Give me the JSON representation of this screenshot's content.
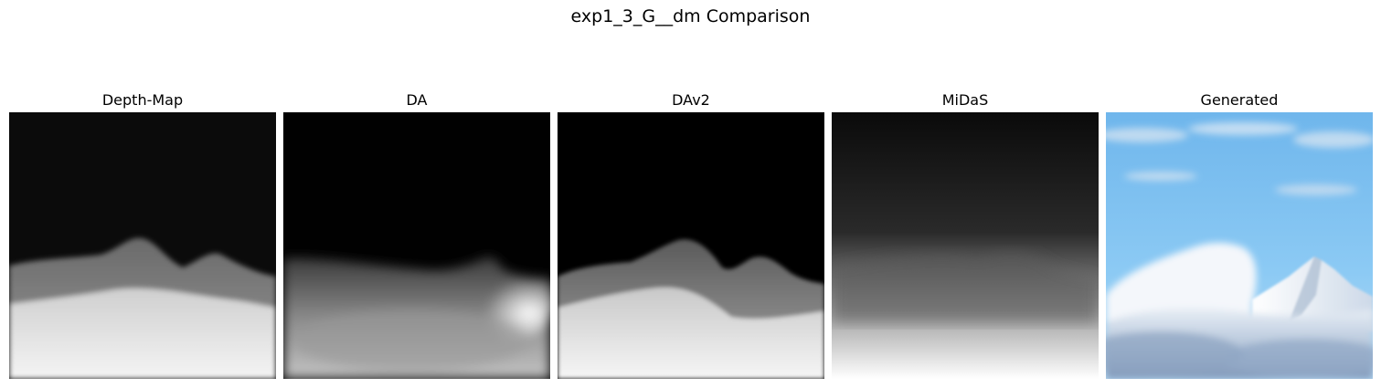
{
  "figure": {
    "title": "exp1_3_G__dm Comparison"
  },
  "panels": [
    {
      "title": "Depth-Map",
      "icon": "depth-map-image"
    },
    {
      "title": "DA",
      "icon": "depth-anything-image"
    },
    {
      "title": "DAv2",
      "icon": "depth-anything-v2-image"
    },
    {
      "title": "MiDaS",
      "icon": "midas-depth-image"
    },
    {
      "title": "Generated",
      "icon": "generated-mountain-photo"
    }
  ]
}
